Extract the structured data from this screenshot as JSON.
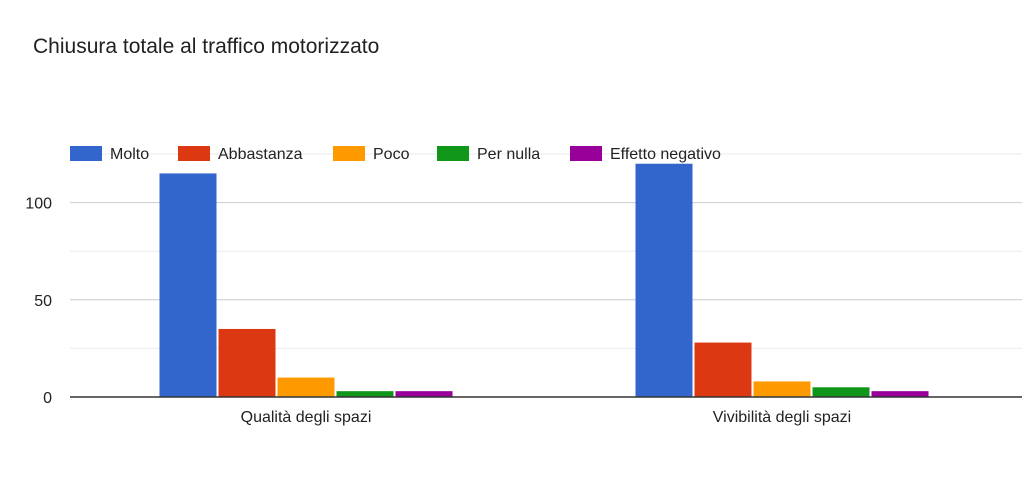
{
  "chart_data": {
    "type": "bar",
    "title": "Chiusura totale al traffico motorizzato",
    "xlabel": "",
    "ylabel": "",
    "ylim": [
      0,
      125
    ],
    "yticks": [
      0,
      50,
      100
    ],
    "minor_gridlines": [
      25,
      75,
      125
    ],
    "grid": true,
    "legend_position": "top",
    "categories": [
      "Qualità degli spazi",
      "Vivibilità degli spazi"
    ],
    "series": [
      {
        "name": "Molto",
        "color": "#3366cc",
        "values": [
          115,
          120
        ]
      },
      {
        "name": "Abbastanza",
        "color": "#dc3912",
        "values": [
          35,
          28
        ]
      },
      {
        "name": "Poco",
        "color": "#ff9900",
        "values": [
          10,
          8
        ]
      },
      {
        "name": "Per nulla",
        "color": "#109618",
        "values": [
          3,
          5
        ]
      },
      {
        "name": "Effetto negativo",
        "color": "#990099",
        "values": [
          3,
          3
        ]
      }
    ]
  }
}
